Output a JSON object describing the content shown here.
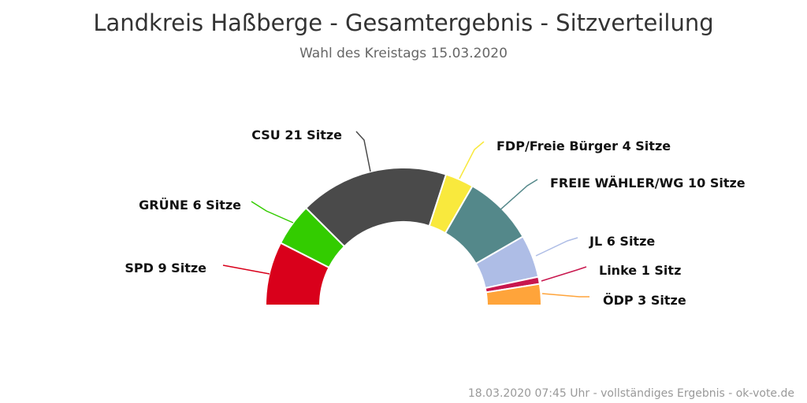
{
  "header": {
    "title": "Landkreis Haßberge - Gesamtergebnis - Sitzverteilung",
    "subtitle": "Wahl des Kreistags 15.03.2020"
  },
  "footer": {
    "text": "18.03.2020 07:45 Uhr - vollständiges Ergebnis - ok-vote.de"
  },
  "chart_data": {
    "type": "pie",
    "variant": "semi-circle parliament",
    "title": "Landkreis Haßberge - Gesamtergebnis - Sitzverteilung",
    "subtitle": "Wahl des Kreistags 15.03.2020",
    "total_seats": 60,
    "slices": [
      {
        "name": "SPD",
        "seats": 9,
        "label": "SPD 9 Sitze",
        "color": "#d9001b"
      },
      {
        "name": "GRÜNE",
        "seats": 6,
        "label": "GRÜNE 6 Sitze",
        "color": "#33cc00"
      },
      {
        "name": "CSU",
        "seats": 21,
        "label": "CSU 21 Sitze",
        "color": "#4a4a4a"
      },
      {
        "name": "FDP/Freie Bürger",
        "seats": 4,
        "label": "FDP/Freie Bürger 4 Sitze",
        "color": "#f9e93d"
      },
      {
        "name": "FREIE WÄHLER/WG",
        "seats": 10,
        "label": "FREIE WÄHLER/WG 10 Sitze",
        "color": "#54888a"
      },
      {
        "name": "JL",
        "seats": 6,
        "label": "JL 6 Sitze",
        "color": "#aebde6"
      },
      {
        "name": "Linke",
        "seats": 1,
        "label": "Linke 1 Sitz",
        "color": "#c8174e"
      },
      {
        "name": "ÖDP",
        "seats": 3,
        "label": "ÖDP 3 Sitze",
        "color": "#ffa43a"
      }
    ]
  }
}
